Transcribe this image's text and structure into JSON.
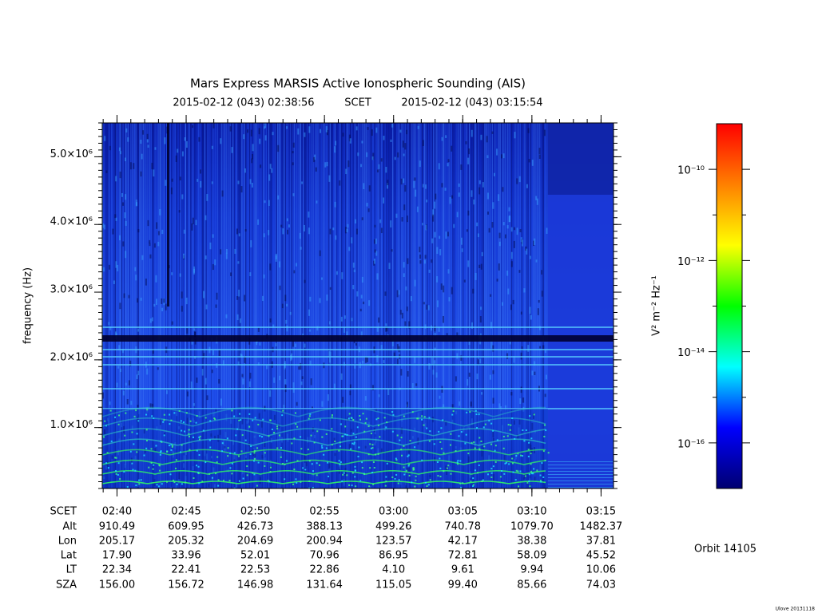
{
  "chart_data": {
    "type": "spectrogram",
    "title": "Mars Express MARSIS Active Ionospheric Sounding (AIS)",
    "subtitle": {
      "start": "2015-02-12 (043) 02:38:56",
      "frame": "SCET",
      "end": "2015-02-12 (043) 03:15:54"
    },
    "ylabel": "frequency (Hz)",
    "ylim": [
      100000,
      5500000
    ],
    "yticks": [
      {
        "value": 1000000,
        "label": "1.0×10⁶"
      },
      {
        "value": 2000000,
        "label": "2.0×10⁶"
      },
      {
        "value": 3000000,
        "label": "3.0×10⁶"
      },
      {
        "value": 4000000,
        "label": "4.0×10⁶"
      },
      {
        "value": 5000000,
        "label": "5.0×10⁶"
      }
    ],
    "x_label": "SCET",
    "x": [
      "02:40",
      "02:45",
      "02:50",
      "02:55",
      "03:00",
      "03:05",
      "03:10",
      "03:15"
    ],
    "ephemeris_labels": [
      "Alt",
      "Lon",
      "Lat",
      "LT",
      "SZA"
    ],
    "ephemeris": [
      [
        "910.49",
        "609.95",
        "426.73",
        "388.13",
        "499.26",
        "740.78",
        "1079.70",
        "1482.37"
      ],
      [
        "205.17",
        "205.32",
        "204.69",
        "200.94",
        "123.57",
        "42.17",
        "38.38",
        "37.81"
      ],
      [
        "17.90",
        "33.96",
        "52.01",
        "70.96",
        "86.95",
        "72.81",
        "58.09",
        "45.52"
      ],
      [
        "22.34",
        "22.41",
        "22.53",
        "22.86",
        "4.10",
        "9.61",
        "9.94",
        "10.06"
      ],
      [
        "156.00",
        "156.72",
        "146.98",
        "131.64",
        "115.05",
        "99.40",
        "85.66",
        "74.03"
      ]
    ],
    "colorbar": {
      "label": "V² m⁻² Hz⁻¹",
      "log": true,
      "lim": [
        1e-17,
        1e-09
      ],
      "ticks": [
        {
          "value": 1e-10,
          "label": "10⁻¹⁰"
        },
        {
          "value": 1e-12,
          "label": "10⁻¹²"
        },
        {
          "value": 1e-14,
          "label": "10⁻¹⁴"
        },
        {
          "value": 1e-16,
          "label": "10⁻¹⁶"
        }
      ],
      "minor_ticks": [
        1e-11,
        1e-13,
        1e-15
      ],
      "colormap": [
        "#000070",
        "#0000ff",
        "#00ffff",
        "#00ff00",
        "#ffff00",
        "#ff8000",
        "#ff0000"
      ]
    },
    "orbit": "Orbit 14105",
    "footer": "Ulove 20131118"
  }
}
